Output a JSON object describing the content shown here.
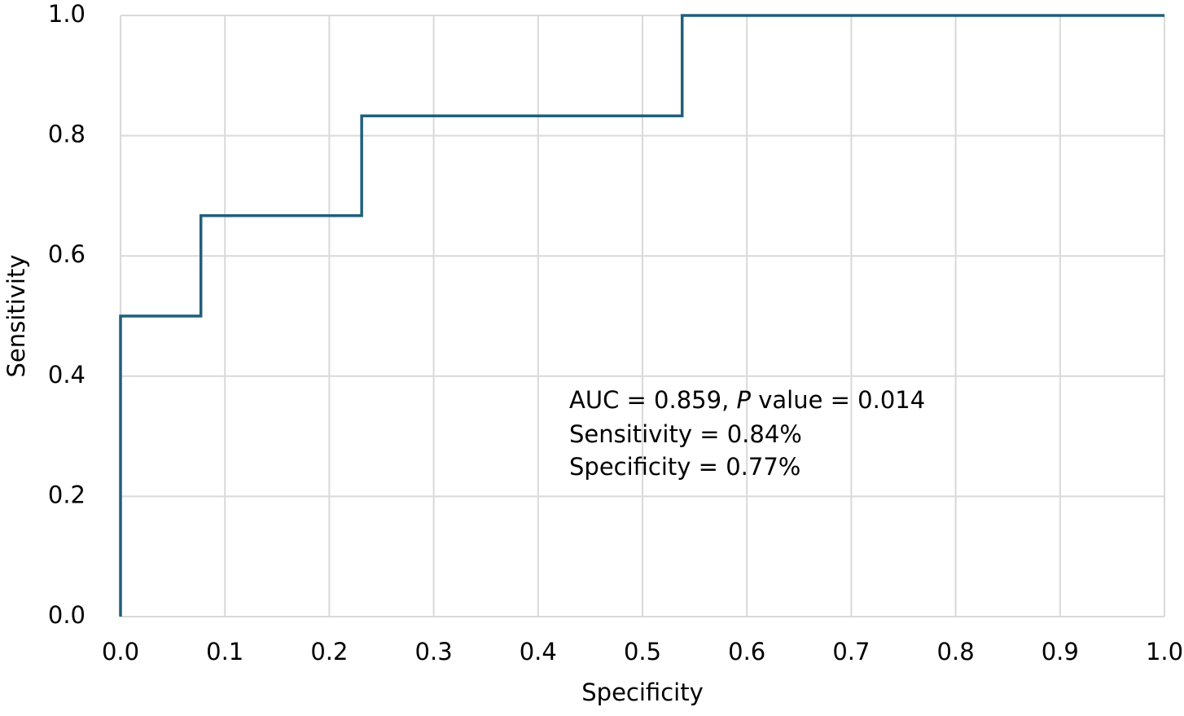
{
  "chart_data": {
    "type": "line",
    "x_label": "Specificity",
    "y_label": "Sensitivity",
    "series": [
      {
        "color": "#215f7c",
        "x": [
          0,
          0,
          0.077,
          0.077,
          0.231,
          0.231,
          0.538,
          0.538,
          1
        ],
        "values": [
          0,
          0.5,
          0.5,
          0.667,
          0.667,
          0.833,
          0.833,
          1,
          1
        ]
      }
    ],
    "xlim": [
      0,
      1
    ],
    "xticks": [
      {
        "value": 0,
        "label": "0.0"
      },
      0.1,
      0.2,
      0.3,
      0.4,
      0.5,
      0.6,
      0.7,
      0.8,
      0.9,
      {
        "value": 1,
        "label": "1.0"
      }
    ],
    "ylim": [
      0,
      1
    ],
    "yticks": [
      {
        "value": 0,
        "label": "0.0"
      },
      0.2,
      0.4,
      0.6,
      0.8,
      {
        "value": 1,
        "label": "1.0"
      }
    ],
    "grid": true,
    "grid_color": "#d9d9d9",
    "annotation": {
      "line1": {
        "before": "AUC = 0.859, ",
        "italic": "P",
        "after": " value = 0.014"
      },
      "line2": "Sensitivity = 0.84%",
      "line3": "Specificity = 0.77%"
    }
  }
}
